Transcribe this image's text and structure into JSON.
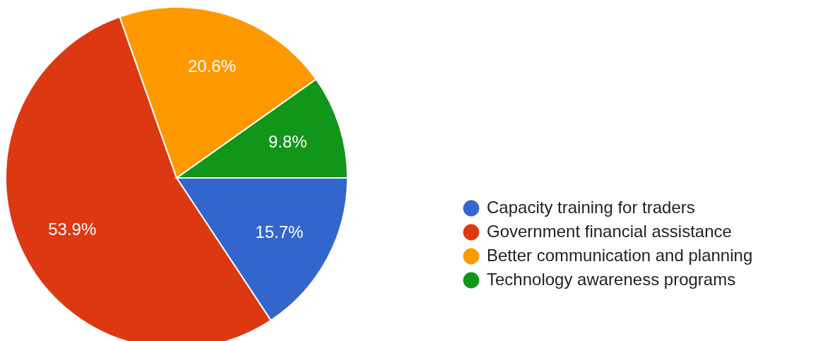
{
  "chart_data": {
    "type": "pie",
    "categories": [
      "Capacity training for traders",
      "Government financial assistance",
      "Better communication and planning",
      "Technology awareness programs"
    ],
    "values": [
      15.7,
      53.9,
      20.6,
      9.8
    ],
    "colors": [
      "#3366cc",
      "#dc3912",
      "#ff9900",
      "#109618"
    ],
    "value_labels": [
      "15.7%",
      "53.9%",
      "20.6%",
      "9.8%"
    ],
    "legend": "right"
  }
}
